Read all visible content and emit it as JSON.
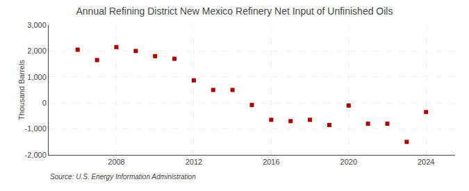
{
  "chart_data": {
    "type": "scatter",
    "title": "Annual Refining District New Mexico Refinery Net Input of Unfinished Oils",
    "ylabel": "Thousand Barrels",
    "annotations": [
      "Source: U.S. Energy Information Administration"
    ],
    "x": [
      2006,
      2007,
      2008,
      2009,
      2010,
      2011,
      2012,
      2013,
      2014,
      2015,
      2016,
      2017,
      2018,
      2019,
      2020,
      2021,
      2022,
      2023,
      2024
    ],
    "values": [
      2050,
      1650,
      2150,
      2000,
      1800,
      1700,
      870,
      500,
      500,
      -80,
      -650,
      -700,
      -650,
      -850,
      -100,
      -800,
      -800,
      -1500,
      -350
    ],
    "color": "#aa0000",
    "marker": "square",
    "grid": true,
    "xlim": [
      2004.5,
      2025.5
    ],
    "xticks": [
      2008,
      2012,
      2016,
      2020,
      2024
    ],
    "ylim": [
      -2000,
      3000
    ],
    "yticks": [
      {
        "value": -2000,
        "label": "-2,000"
      },
      {
        "value": -1000,
        "label": "-1,000"
      },
      0,
      {
        "value": 1000,
        "label": "1,000"
      },
      {
        "value": 2000,
        "label": "2,000"
      },
      {
        "value": 3000,
        "label": "3,000"
      }
    ]
  }
}
